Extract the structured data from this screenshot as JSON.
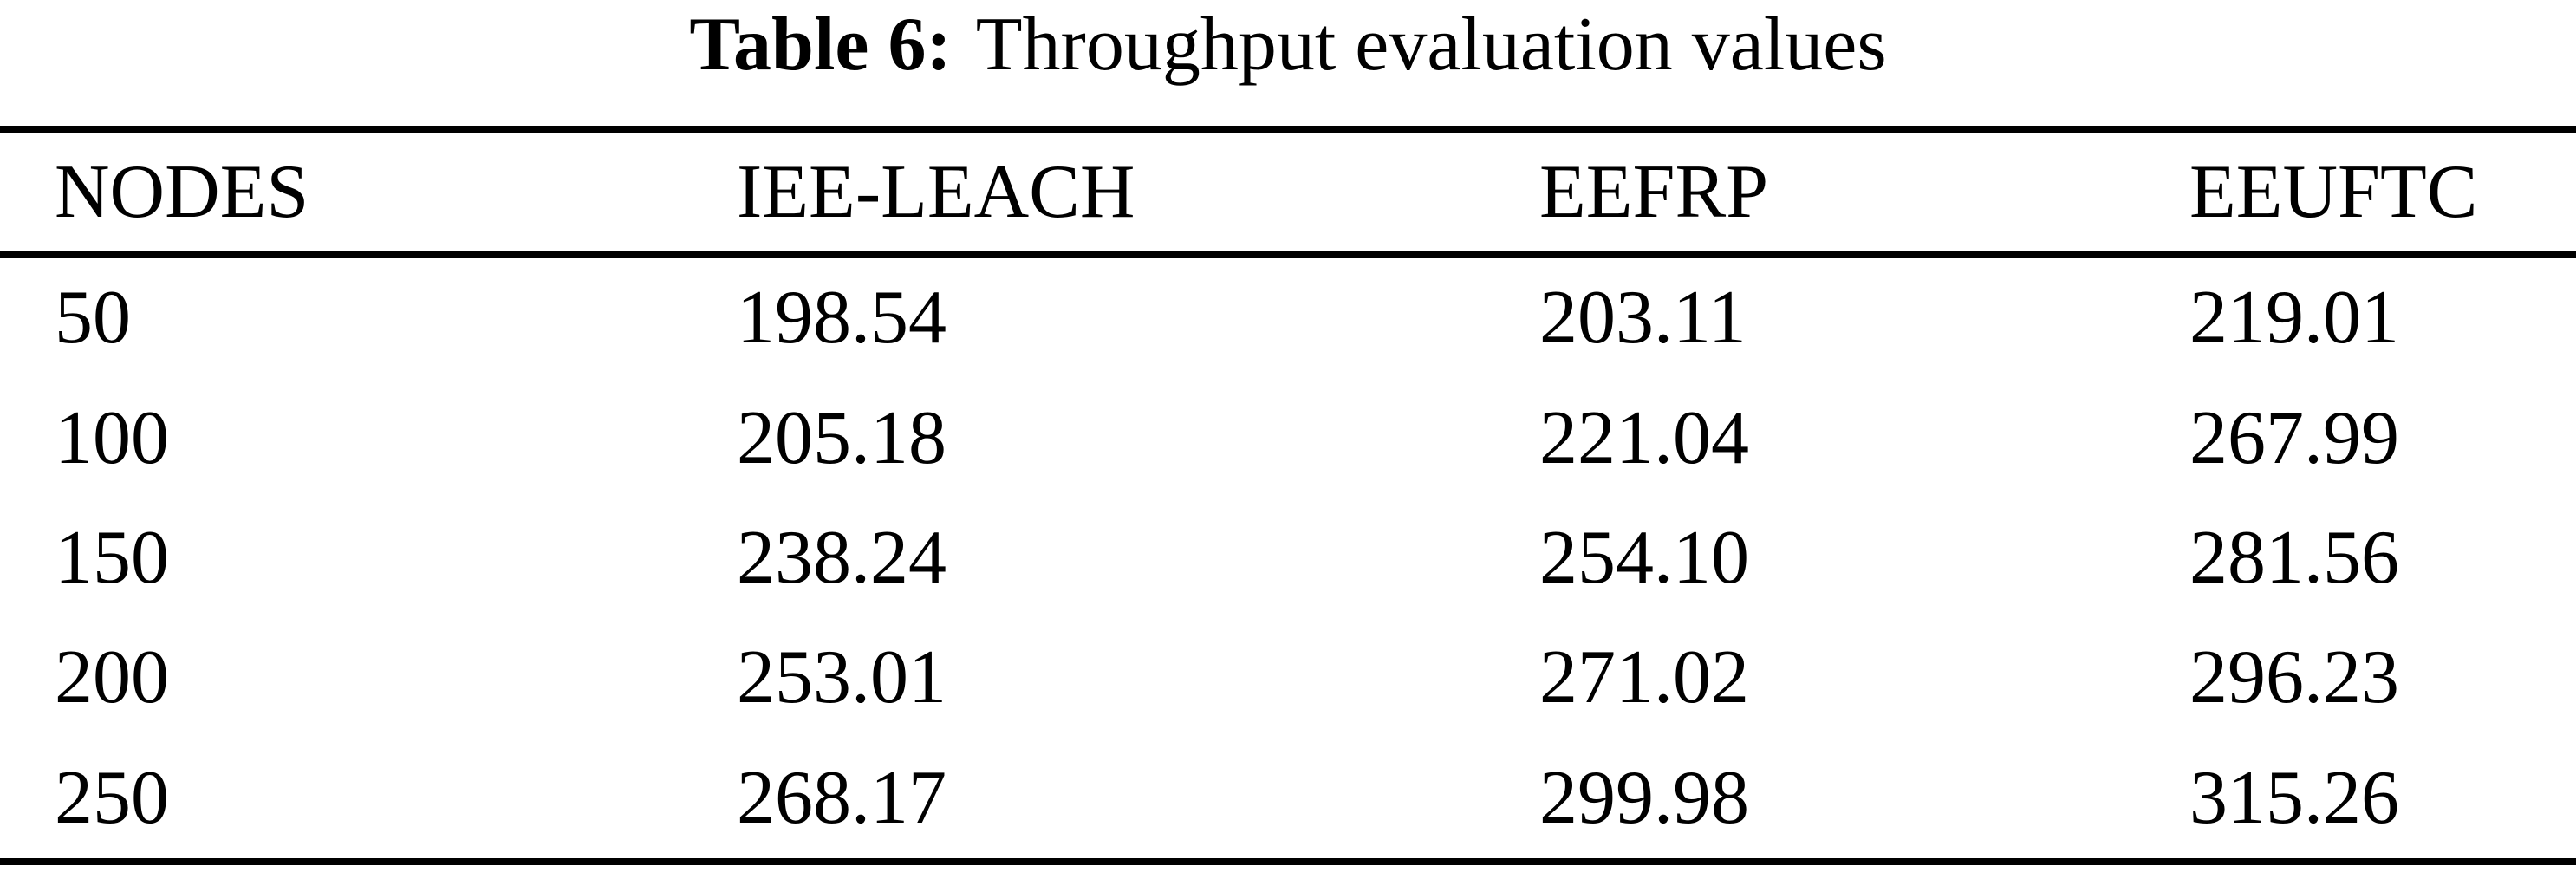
{
  "caption": {
    "label": "Table 6:",
    "text": "Throughput evaluation values"
  },
  "table": {
    "headers": [
      "NODES",
      "IEE-LEACH",
      "EEFRP",
      "EEUFTC"
    ],
    "rows": [
      [
        "50",
        "198.54",
        "203.11",
        "219.01"
      ],
      [
        "100",
        "205.18",
        "221.04",
        "267.99"
      ],
      [
        "150",
        "238.24",
        "254.10",
        "281.56"
      ],
      [
        "200",
        "253.01",
        "271.02",
        "296.23"
      ],
      [
        "250",
        "268.17",
        "299.98",
        "315.26"
      ]
    ]
  },
  "chart_data": {
    "type": "table",
    "title": "Table 6: Throughput evaluation values",
    "columns": [
      "NODES",
      "IEE-LEACH",
      "EEFRP",
      "EEUFTC"
    ],
    "rows": [
      [
        50,
        198.54,
        203.11,
        219.01
      ],
      [
        100,
        205.18,
        221.04,
        267.99
      ],
      [
        150,
        238.24,
        254.1,
        281.56
      ],
      [
        200,
        253.01,
        271.02,
        296.23
      ],
      [
        250,
        268.17,
        299.98,
        315.26
      ]
    ]
  },
  "colors": {
    "background": "#ffffff",
    "text": "#000000",
    "rule": "#000000"
  }
}
